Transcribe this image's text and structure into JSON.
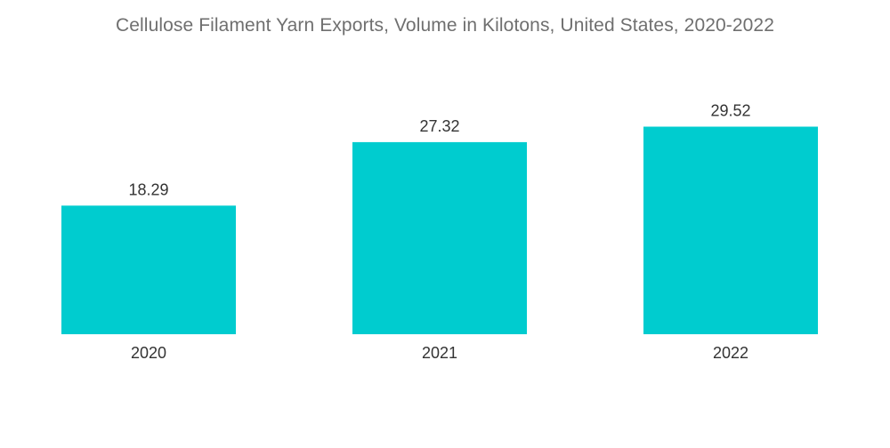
{
  "title": "Cellulose Filament Yarn Exports, Volume in Kilotons, United States, 2020-2022",
  "colors": {
    "bar": "#00cccf",
    "title": "#6f6f6f",
    "labels": "#333333"
  },
  "chart_data": {
    "type": "bar",
    "title": "Cellulose Filament Yarn Exports, Volume in Kilotons, United States, 2020-2022",
    "xlabel": "",
    "ylabel": "",
    "categories": [
      "2020",
      "2021",
      "2022"
    ],
    "values": [
      18.29,
      27.32,
      29.52
    ],
    "value_labels": [
      "18.29",
      "27.32",
      "29.52"
    ],
    "ylim": [
      0,
      32
    ],
    "grid": false,
    "legend": "none"
  }
}
